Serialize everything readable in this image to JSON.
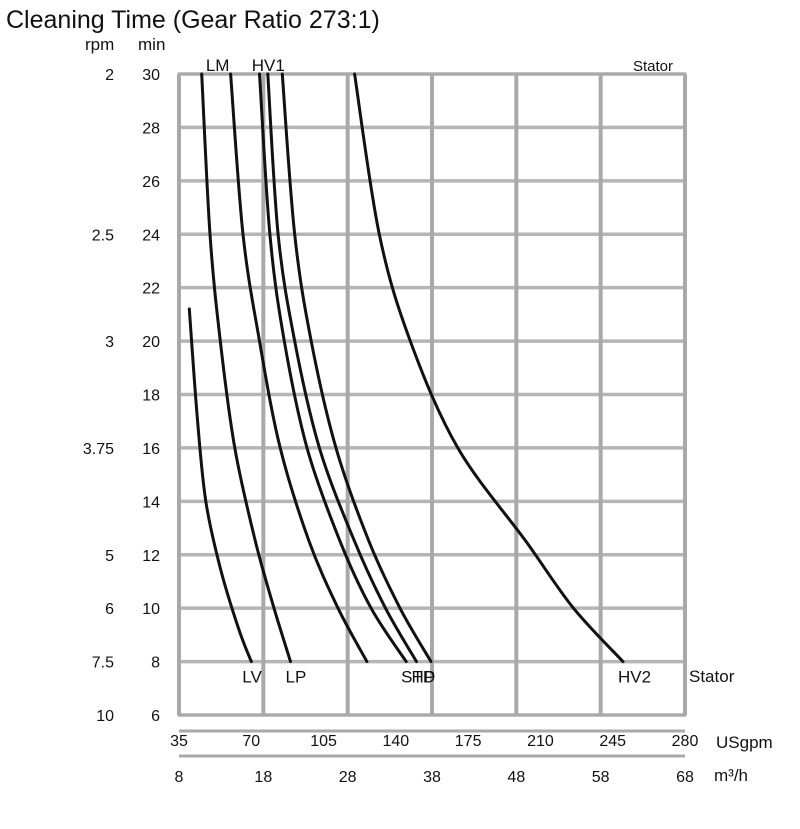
{
  "chart_data": {
    "type": "line",
    "title": "Cleaning Time (Gear Ratio 273:1)",
    "y_axis": {
      "label": "min",
      "range": [
        6,
        30
      ],
      "ticks": [
        6,
        8,
        10,
        12,
        14,
        16,
        18,
        20,
        22,
        24,
        26,
        28,
        30
      ]
    },
    "secondary_y_axis": {
      "label": "rpm",
      "ticks": [
        {
          "label": "2",
          "at_min": 30
        },
        {
          "label": "2.5",
          "at_min": 24
        },
        {
          "label": "3",
          "at_min": 20
        },
        {
          "label": "3.75",
          "at_min": 16
        },
        {
          "label": "5",
          "at_min": 12
        },
        {
          "label": "6",
          "at_min": 10
        },
        {
          "label": "7.5",
          "at_min": 8
        },
        {
          "label": "10",
          "at_min": 6
        }
      ]
    },
    "x_axis": {
      "label": "USgpm",
      "range": [
        35,
        280
      ],
      "ticks": [
        "35",
        "70",
        "105",
        "140",
        "175",
        "210",
        "245",
        "280"
      ]
    },
    "secondary_x_axis": {
      "label": "m³/h",
      "ticks": [
        "8",
        "18",
        "28",
        "38",
        "48",
        "58",
        "68"
      ]
    },
    "stator_label_top": "Stator",
    "stator_label_bottom": "Stator",
    "grid": true,
    "series": [
      {
        "name": "LV",
        "points": [
          [
            40,
            21.2
          ],
          [
            44,
            17
          ],
          [
            48,
            14
          ],
          [
            55,
            11.5
          ],
          [
            64,
            9.2
          ],
          [
            70,
            8
          ]
        ]
      },
      {
        "name": "LP",
        "points": [
          [
            46,
            30
          ],
          [
            50,
            24
          ],
          [
            55,
            20
          ],
          [
            62,
            16
          ],
          [
            72,
            12.5
          ],
          [
            81,
            10
          ],
          [
            89,
            8
          ]
        ]
      },
      {
        "name": "LM",
        "points": [
          [
            60,
            30
          ],
          [
            66,
            24
          ],
          [
            74,
            20
          ],
          [
            84,
            16
          ],
          [
            98,
            12.5
          ],
          [
            112,
            10
          ],
          [
            126,
            8
          ]
        ]
      },
      {
        "name": "STD",
        "points": [
          [
            74,
            30
          ],
          [
            79,
            24
          ],
          [
            86,
            20
          ],
          [
            97,
            16
          ],
          [
            113,
            12.5
          ],
          [
            128,
            10
          ],
          [
            145,
            8
          ]
        ]
      },
      {
        "name": "HP",
        "points": [
          [
            78,
            30
          ],
          [
            83,
            24
          ],
          [
            91,
            20
          ],
          [
            103,
            16
          ],
          [
            120,
            12.5
          ],
          [
            135,
            10
          ],
          [
            150,
            8
          ]
        ]
      },
      {
        "name": "HV1",
        "points": [
          [
            85,
            30
          ],
          [
            91,
            24
          ],
          [
            99,
            20
          ],
          [
            111,
            16
          ],
          [
            127,
            12.5
          ],
          [
            142,
            10
          ],
          [
            157,
            8
          ]
        ]
      },
      {
        "name": "HV2",
        "points": [
          [
            120,
            30
          ],
          [
            132,
            24
          ],
          [
            147,
            20
          ],
          [
            170,
            16
          ],
          [
            203,
            12.5
          ],
          [
            226,
            10
          ],
          [
            250,
            8
          ]
        ]
      }
    ]
  }
}
